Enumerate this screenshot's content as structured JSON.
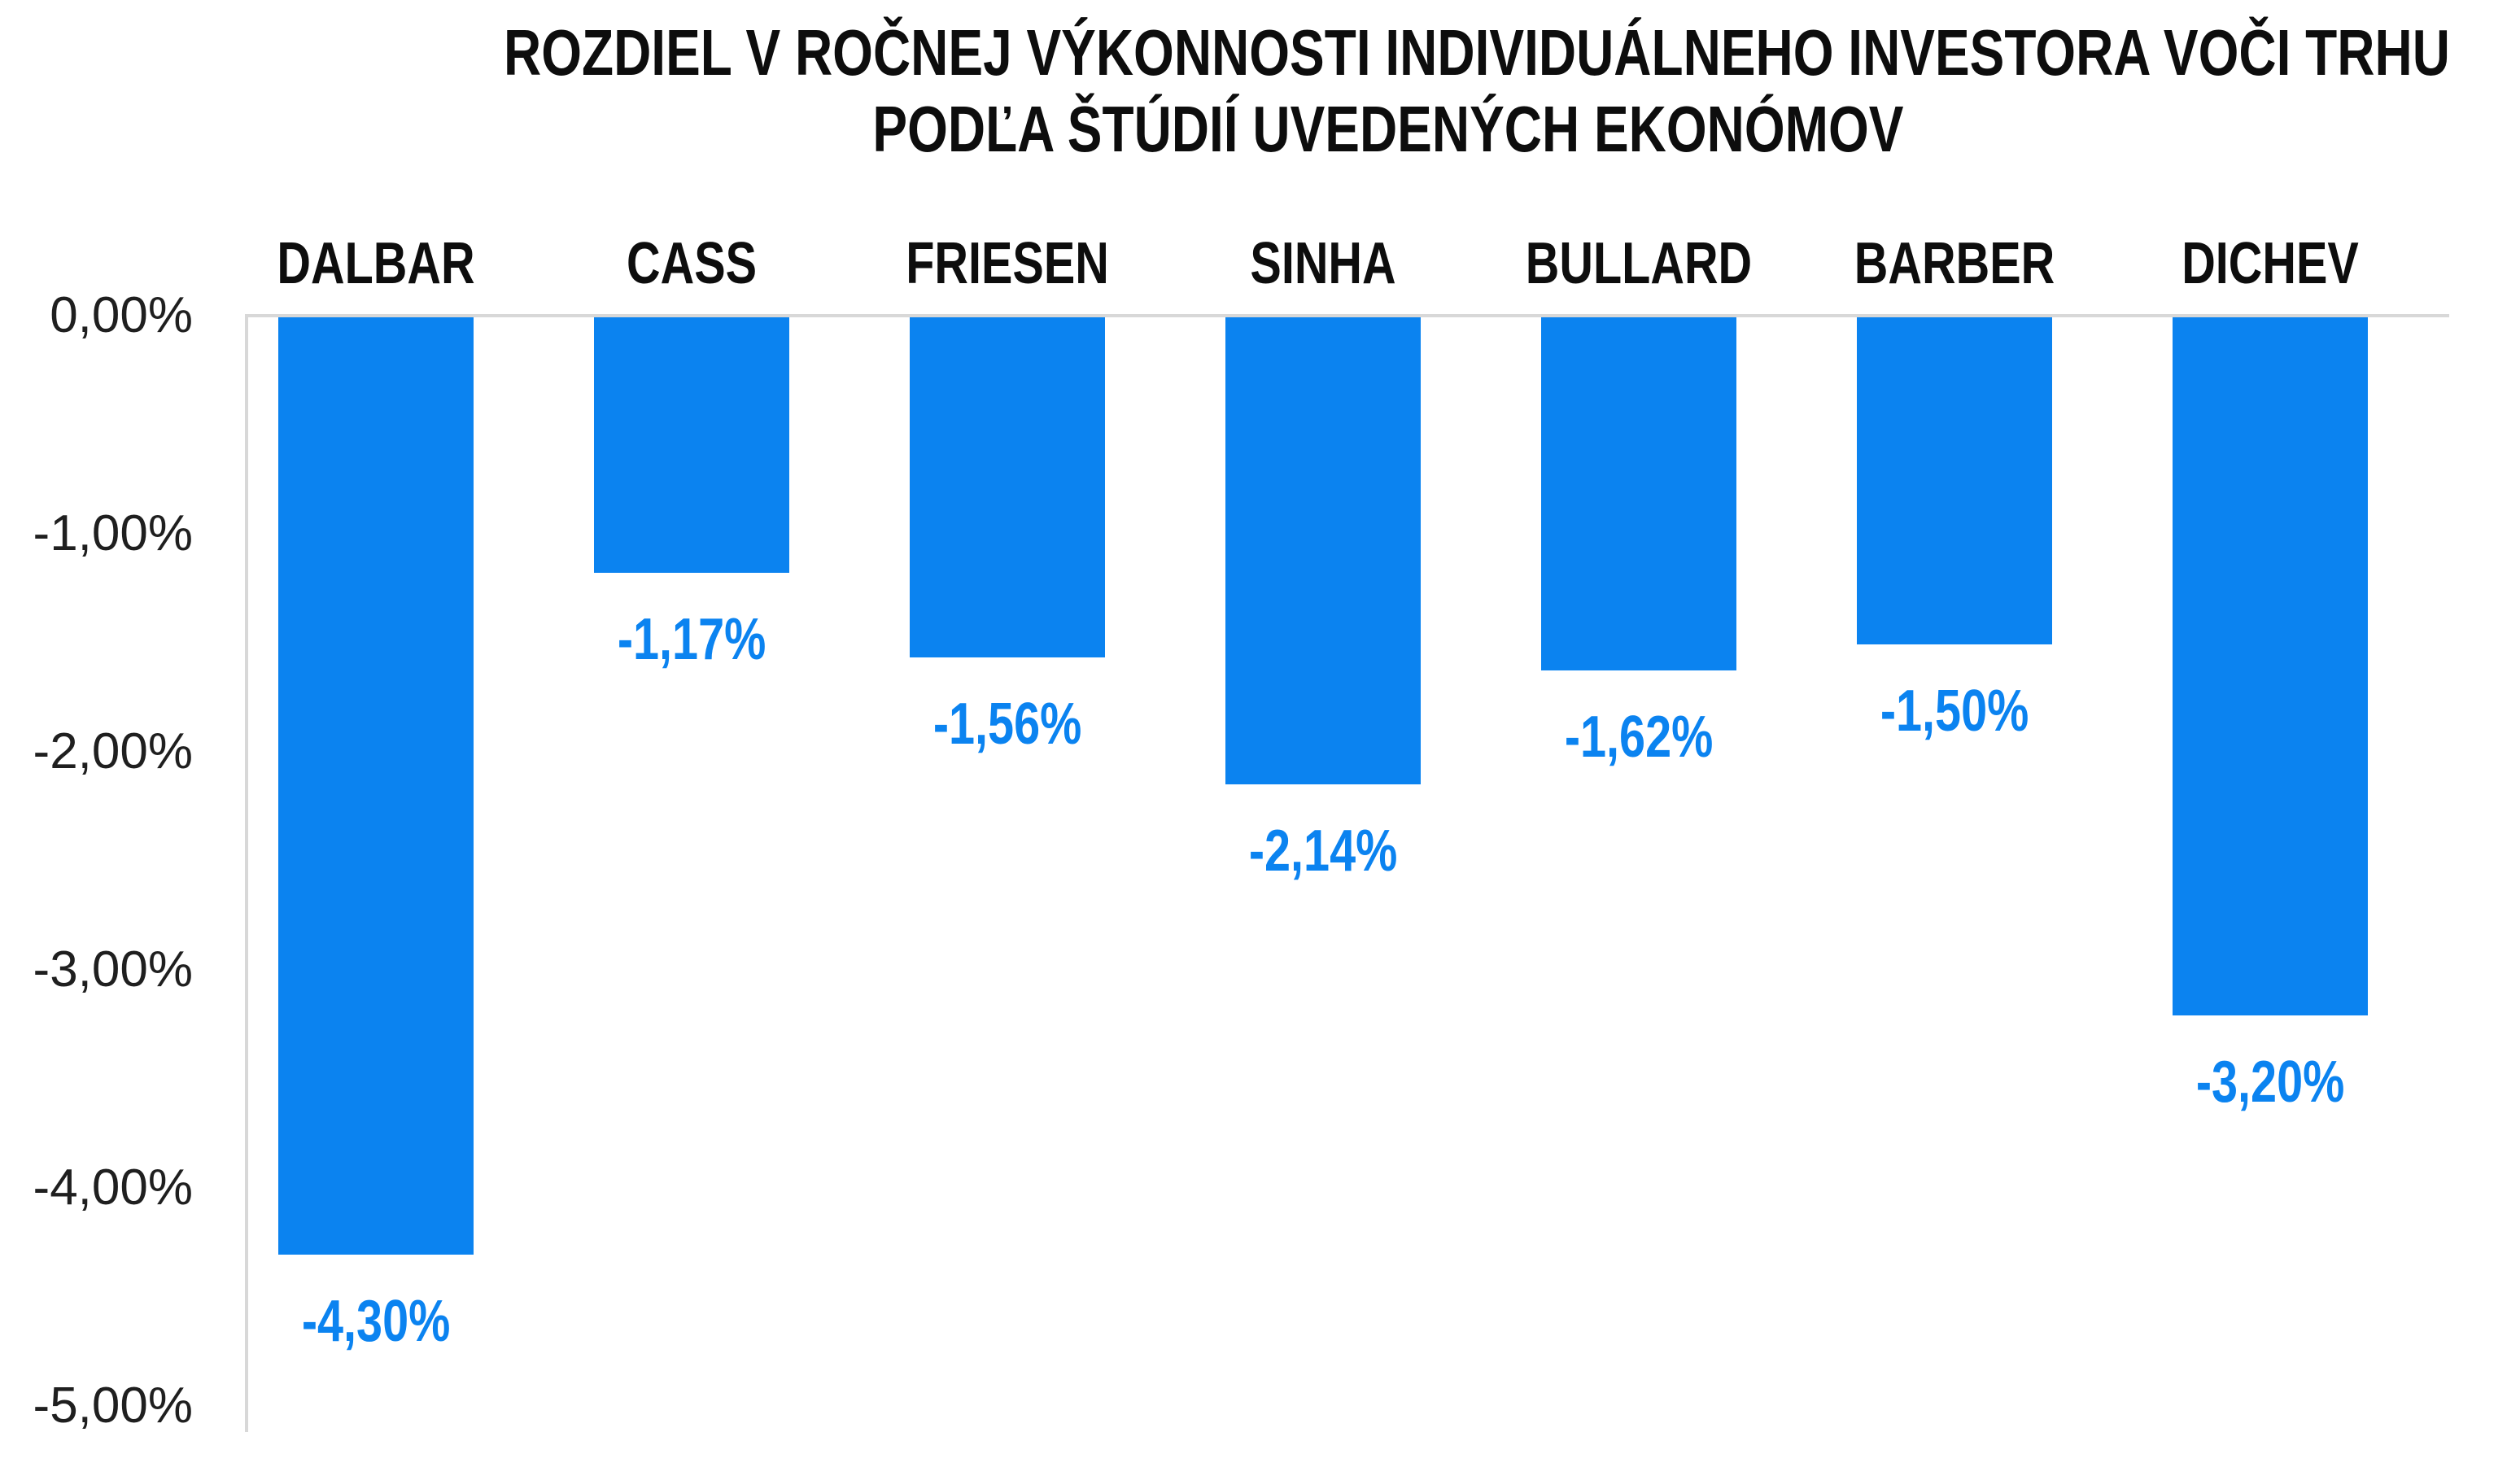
{
  "chart_data": {
    "type": "bar",
    "title": "ROZDIEL V ROČNEJ VÝKONNOSTI INDIVIDUÁLNEHO INVESTORA VOČI TRHU PODĽA ŠTÚDIÍ UVEDENÝCH EKONÓMOV",
    "title_lines": [
      "ROZDIEL V ROČNEJ VÝKONNOSTI INDIVIDUÁLNEHO INVESTORA VOČI TRHU",
      "PODĽA ŠTÚDIÍ UVEDENÝCH EKONÓMOV"
    ],
    "categories": [
      "DALBAR",
      "CASS",
      "FRIESEN",
      "SINHA",
      "BULLARD",
      "BARBER",
      "DICHEV"
    ],
    "values": [
      -4.3,
      -1.17,
      -1.56,
      -2.14,
      -1.62,
      -1.5,
      -3.2
    ],
    "value_labels": [
      "-4,30%",
      "-1,17%",
      "-1,56%",
      "-2,14%",
      "-1,62%",
      "-1,50%",
      "-3,20%"
    ],
    "y_ticks": [
      "0,00%",
      "-1,00%",
      "-2,00%",
      "-3,00%",
      "-4,00%",
      "-5,00%"
    ],
    "ylim": [
      -5,
      0
    ],
    "xlabel": "",
    "ylabel": "",
    "grid": "zero-line-only",
    "legend": "none",
    "value_label_position": "below-bar",
    "category_label_position": "above-plot",
    "colors": {
      "bar": "#0b83f0",
      "value_label": "#0b83f0",
      "title": "#0d0d0d",
      "category_label": "#0d0d0d",
      "tick_label": "#1f1f1f",
      "axis_line": "#d8d8d8",
      "background": "#ffffff"
    }
  }
}
